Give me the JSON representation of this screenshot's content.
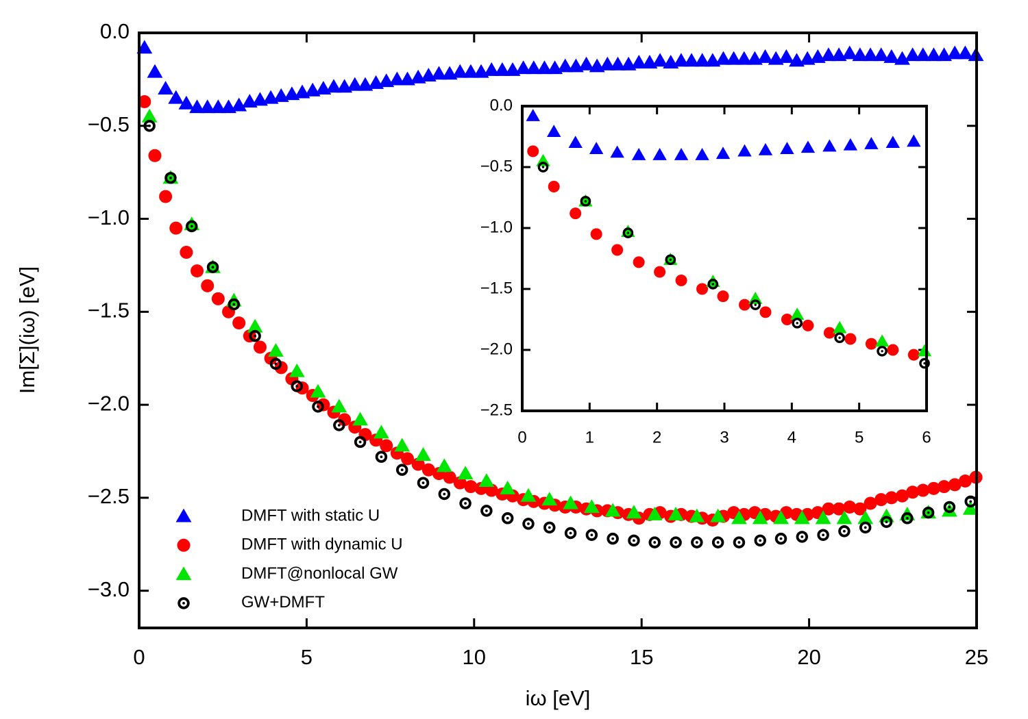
{
  "chart_data": {
    "type": "scatter",
    "xlabel": "iω [eV]",
    "ylabel": "Im[Σ](iω) [eV]",
    "xlim": [
      0,
      25
    ],
    "ylim": [
      -3.2,
      0
    ],
    "xticks": [
      0,
      5,
      10,
      15,
      20,
      25
    ],
    "yticks": [
      {
        "value": 0,
        "label": "0.0"
      },
      {
        "value": -0.5,
        "label": "−0.5"
      },
      {
        "value": -1.0,
        "label": "−1.0"
      },
      {
        "value": -1.5,
        "label": "−1.5"
      },
      {
        "value": -2.0,
        "label": "−2.0"
      },
      {
        "value": -2.5,
        "label": "−2.5"
      },
      {
        "value": -3.0,
        "label": "−3.0"
      }
    ],
    "legend": "lower left",
    "series": [
      {
        "name": "DMFT with static U",
        "color": "#0000ff",
        "marker": "triangle",
        "x": [
          0.16,
          0.47,
          0.79,
          1.1,
          1.41,
          1.73,
          2.04,
          2.36,
          2.67,
          2.98,
          3.3,
          3.61,
          3.93,
          4.24,
          4.56,
          4.87,
          5.18,
          5.5,
          5.81,
          6.13,
          6.44,
          6.75,
          7.07,
          7.38,
          7.7,
          8.01,
          8.33,
          8.64,
          8.95,
          9.27,
          9.58,
          9.9,
          10.21,
          10.52,
          10.84,
          11.15,
          11.47,
          11.78,
          12.1,
          12.41,
          12.72,
          13.04,
          13.35,
          13.67,
          13.98,
          14.29,
          14.61,
          14.92,
          15.24,
          15.55,
          15.87,
          16.18,
          16.49,
          16.81,
          17.12,
          17.44,
          17.75,
          18.06,
          18.38,
          18.69,
          19.01,
          19.32,
          19.63,
          19.95,
          20.26,
          20.58,
          20.89,
          21.21,
          21.52,
          21.83,
          22.15,
          22.46,
          22.78,
          23.09,
          23.4,
          23.72,
          24.03,
          24.35,
          24.66,
          24.98
        ],
        "values": [
          -0.08,
          -0.21,
          -0.3,
          -0.35,
          -0.38,
          -0.4,
          -0.4,
          -0.4,
          -0.4,
          -0.39,
          -0.37,
          -0.36,
          -0.35,
          -0.34,
          -0.33,
          -0.32,
          -0.31,
          -0.3,
          -0.29,
          -0.29,
          -0.28,
          -0.28,
          -0.27,
          -0.26,
          -0.25,
          -0.25,
          -0.24,
          -0.23,
          -0.22,
          -0.22,
          -0.21,
          -0.21,
          -0.21,
          -0.2,
          -0.2,
          -0.2,
          -0.19,
          -0.19,
          -0.19,
          -0.19,
          -0.18,
          -0.18,
          -0.17,
          -0.18,
          -0.17,
          -0.17,
          -0.17,
          -0.16,
          -0.16,
          -0.15,
          -0.16,
          -0.15,
          -0.15,
          -0.15,
          -0.15,
          -0.14,
          -0.14,
          -0.14,
          -0.14,
          -0.13,
          -0.14,
          -0.13,
          -0.15,
          -0.14,
          -0.13,
          -0.12,
          -0.12,
          -0.11,
          -0.12,
          -0.12,
          -0.12,
          -0.13,
          -0.14,
          -0.12,
          -0.12,
          -0.12,
          -0.12,
          -0.11,
          -0.11,
          -0.12
        ]
      },
      {
        "name": "DMFT with dynamic U",
        "color": "#ff0000",
        "marker": "circle",
        "x": [
          0.16,
          0.47,
          0.79,
          1.1,
          1.41,
          1.73,
          2.04,
          2.36,
          2.67,
          2.98,
          3.3,
          3.61,
          3.93,
          4.24,
          4.56,
          4.87,
          5.18,
          5.5,
          5.81,
          6.13,
          6.44,
          6.75,
          7.07,
          7.38,
          7.7,
          8.01,
          8.33,
          8.64,
          8.95,
          9.27,
          9.58,
          9.9,
          10.21,
          10.52,
          10.84,
          11.15,
          11.47,
          11.78,
          12.1,
          12.41,
          12.72,
          13.04,
          13.35,
          13.67,
          13.98,
          14.29,
          14.61,
          14.92,
          15.24,
          15.55,
          15.87,
          16.18,
          16.49,
          16.81,
          17.12,
          17.44,
          17.75,
          18.06,
          18.38,
          18.69,
          19.01,
          19.32,
          19.63,
          19.95,
          20.26,
          20.58,
          20.89,
          21.21,
          21.52,
          21.83,
          22.15,
          22.46,
          22.78,
          23.09,
          23.4,
          23.72,
          24.03,
          24.35,
          24.66,
          24.98
        ],
        "values": [
          -0.37,
          -0.66,
          -0.88,
          -1.05,
          -1.18,
          -1.28,
          -1.36,
          -1.43,
          -1.5,
          -1.56,
          -1.63,
          -1.69,
          -1.75,
          -1.8,
          -1.86,
          -1.91,
          -1.95,
          -2.0,
          -2.04,
          -2.08,
          -2.12,
          -2.16,
          -2.19,
          -2.22,
          -2.26,
          -2.29,
          -2.32,
          -2.35,
          -2.37,
          -2.39,
          -2.42,
          -2.44,
          -2.45,
          -2.46,
          -2.48,
          -2.49,
          -2.51,
          -2.52,
          -2.53,
          -2.54,
          -2.55,
          -2.55,
          -2.56,
          -2.57,
          -2.57,
          -2.58,
          -2.59,
          -2.61,
          -2.59,
          -2.58,
          -2.6,
          -2.59,
          -2.6,
          -2.61,
          -2.62,
          -2.6,
          -2.58,
          -2.59,
          -2.58,
          -2.59,
          -2.6,
          -2.58,
          -2.59,
          -2.59,
          -2.58,
          -2.56,
          -2.56,
          -2.55,
          -2.56,
          -2.53,
          -2.51,
          -2.5,
          -2.49,
          -2.47,
          -2.46,
          -2.45,
          -2.44,
          -2.43,
          -2.41,
          -2.39
        ]
      },
      {
        "name": "DMFT@nonlocal GW",
        "color": "#00e600",
        "marker": "triangle",
        "x": [
          0.31,
          0.94,
          1.57,
          2.2,
          2.83,
          3.46,
          4.08,
          4.71,
          5.34,
          5.97,
          6.6,
          7.23,
          7.85,
          8.48,
          9.11,
          9.74,
          10.37,
          11.0,
          11.62,
          12.25,
          12.88,
          13.51,
          14.14,
          14.77,
          15.39,
          16.02,
          16.65,
          17.28,
          17.91,
          18.54,
          19.16,
          19.79,
          20.42,
          21.05,
          21.68,
          22.31,
          22.93,
          23.56,
          24.19,
          24.82
        ],
        "values": [
          -0.45,
          -0.78,
          -1.03,
          -1.26,
          -1.44,
          -1.58,
          -1.71,
          -1.82,
          -1.93,
          -2.01,
          -2.08,
          -2.15,
          -2.22,
          -2.27,
          -2.33,
          -2.37,
          -2.41,
          -2.45,
          -2.49,
          -2.51,
          -2.53,
          -2.55,
          -2.57,
          -2.58,
          -2.59,
          -2.59,
          -2.6,
          -2.6,
          -2.61,
          -2.61,
          -2.61,
          -2.61,
          -2.61,
          -2.61,
          -2.61,
          -2.6,
          -2.59,
          -2.58,
          -2.57,
          -2.56
        ]
      },
      {
        "name": "GW+DMFT",
        "color": "#000000",
        "marker": "ring",
        "x": [
          0.31,
          0.94,
          1.57,
          2.2,
          2.83,
          3.46,
          4.08,
          4.71,
          5.34,
          5.97,
          6.6,
          7.23,
          7.85,
          8.48,
          9.11,
          9.74,
          10.37,
          11.0,
          11.62,
          12.25,
          12.88,
          13.51,
          14.14,
          14.77,
          15.39,
          16.02,
          16.65,
          17.28,
          17.91,
          18.54,
          19.16,
          19.79,
          20.42,
          21.05,
          21.68,
          22.31,
          22.93,
          23.56,
          24.19,
          24.82
        ],
        "values": [
          -0.5,
          -0.78,
          -1.04,
          -1.26,
          -1.46,
          -1.63,
          -1.78,
          -1.9,
          -2.01,
          -2.11,
          -2.2,
          -2.28,
          -2.35,
          -2.42,
          -2.48,
          -2.53,
          -2.57,
          -2.61,
          -2.64,
          -2.66,
          -2.69,
          -2.7,
          -2.72,
          -2.73,
          -2.74,
          -2.74,
          -2.74,
          -2.74,
          -2.74,
          -2.73,
          -2.72,
          -2.71,
          -2.7,
          -2.68,
          -2.66,
          -2.63,
          -2.61,
          -2.58,
          -2.55,
          -2.52
        ]
      }
    ],
    "inset": {
      "xlim": [
        0,
        6
      ],
      "ylim": [
        -2.5,
        0
      ],
      "xticks": [
        0,
        1,
        2,
        3,
        4,
        5,
        6
      ],
      "yticks": [
        {
          "value": 0,
          "label": "0.0"
        },
        {
          "value": -0.5,
          "label": "−0.5"
        },
        {
          "value": -1.0,
          "label": "−1.0"
        },
        {
          "value": -1.5,
          "label": "−1.5"
        },
        {
          "value": -2.0,
          "label": "−2.0"
        },
        {
          "value": -2.5,
          "label": "−2.5"
        }
      ]
    }
  }
}
